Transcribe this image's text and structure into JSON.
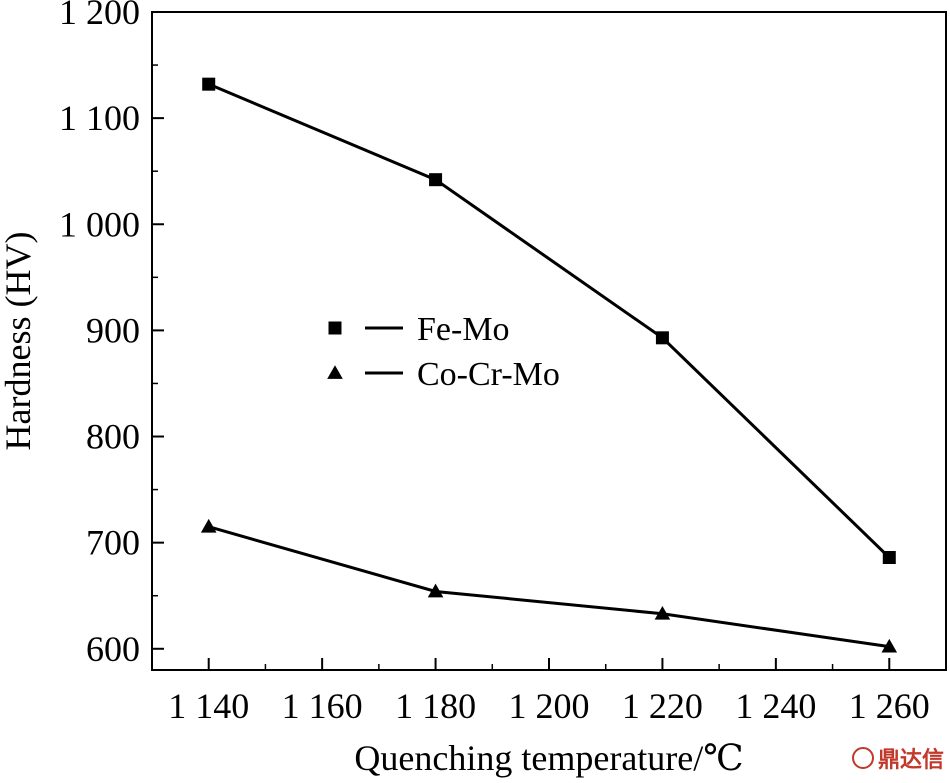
{
  "chart_data": {
    "type": "line",
    "title": "",
    "xlabel": "Quenching temperature/℃",
    "ylabel": "Hardness (HV)",
    "xlim": [
      1130,
      1270
    ],
    "ylim": [
      580,
      1200
    ],
    "x_ticks": [
      1140,
      1160,
      1180,
      1200,
      1220,
      1240,
      1260
    ],
    "x_tick_labels": [
      "1 140",
      "1 160",
      "1 180",
      "1 200",
      "1 220",
      "1 240",
      "1 260"
    ],
    "y_ticks": [
      600,
      700,
      800,
      900,
      1000,
      1100,
      1200
    ],
    "y_tick_labels": [
      "600",
      "700",
      "800",
      "900",
      "1 000",
      "1 100",
      "1 200"
    ],
    "x": [
      1140,
      1180,
      1220,
      1260
    ],
    "series": [
      {
        "name": "Fe-Mo",
        "marker": "square",
        "color": "#000000",
        "values": [
          1132,
          1042,
          893,
          686
        ]
      },
      {
        "name": "Co-Cr-Mo",
        "marker": "triangle",
        "color": "#000000",
        "values": [
          715,
          654,
          633,
          602
        ]
      }
    ],
    "legend_position": "center-left",
    "grid": false
  },
  "watermark": {
    "text": "鼎达信",
    "color": "#c0392b"
  }
}
